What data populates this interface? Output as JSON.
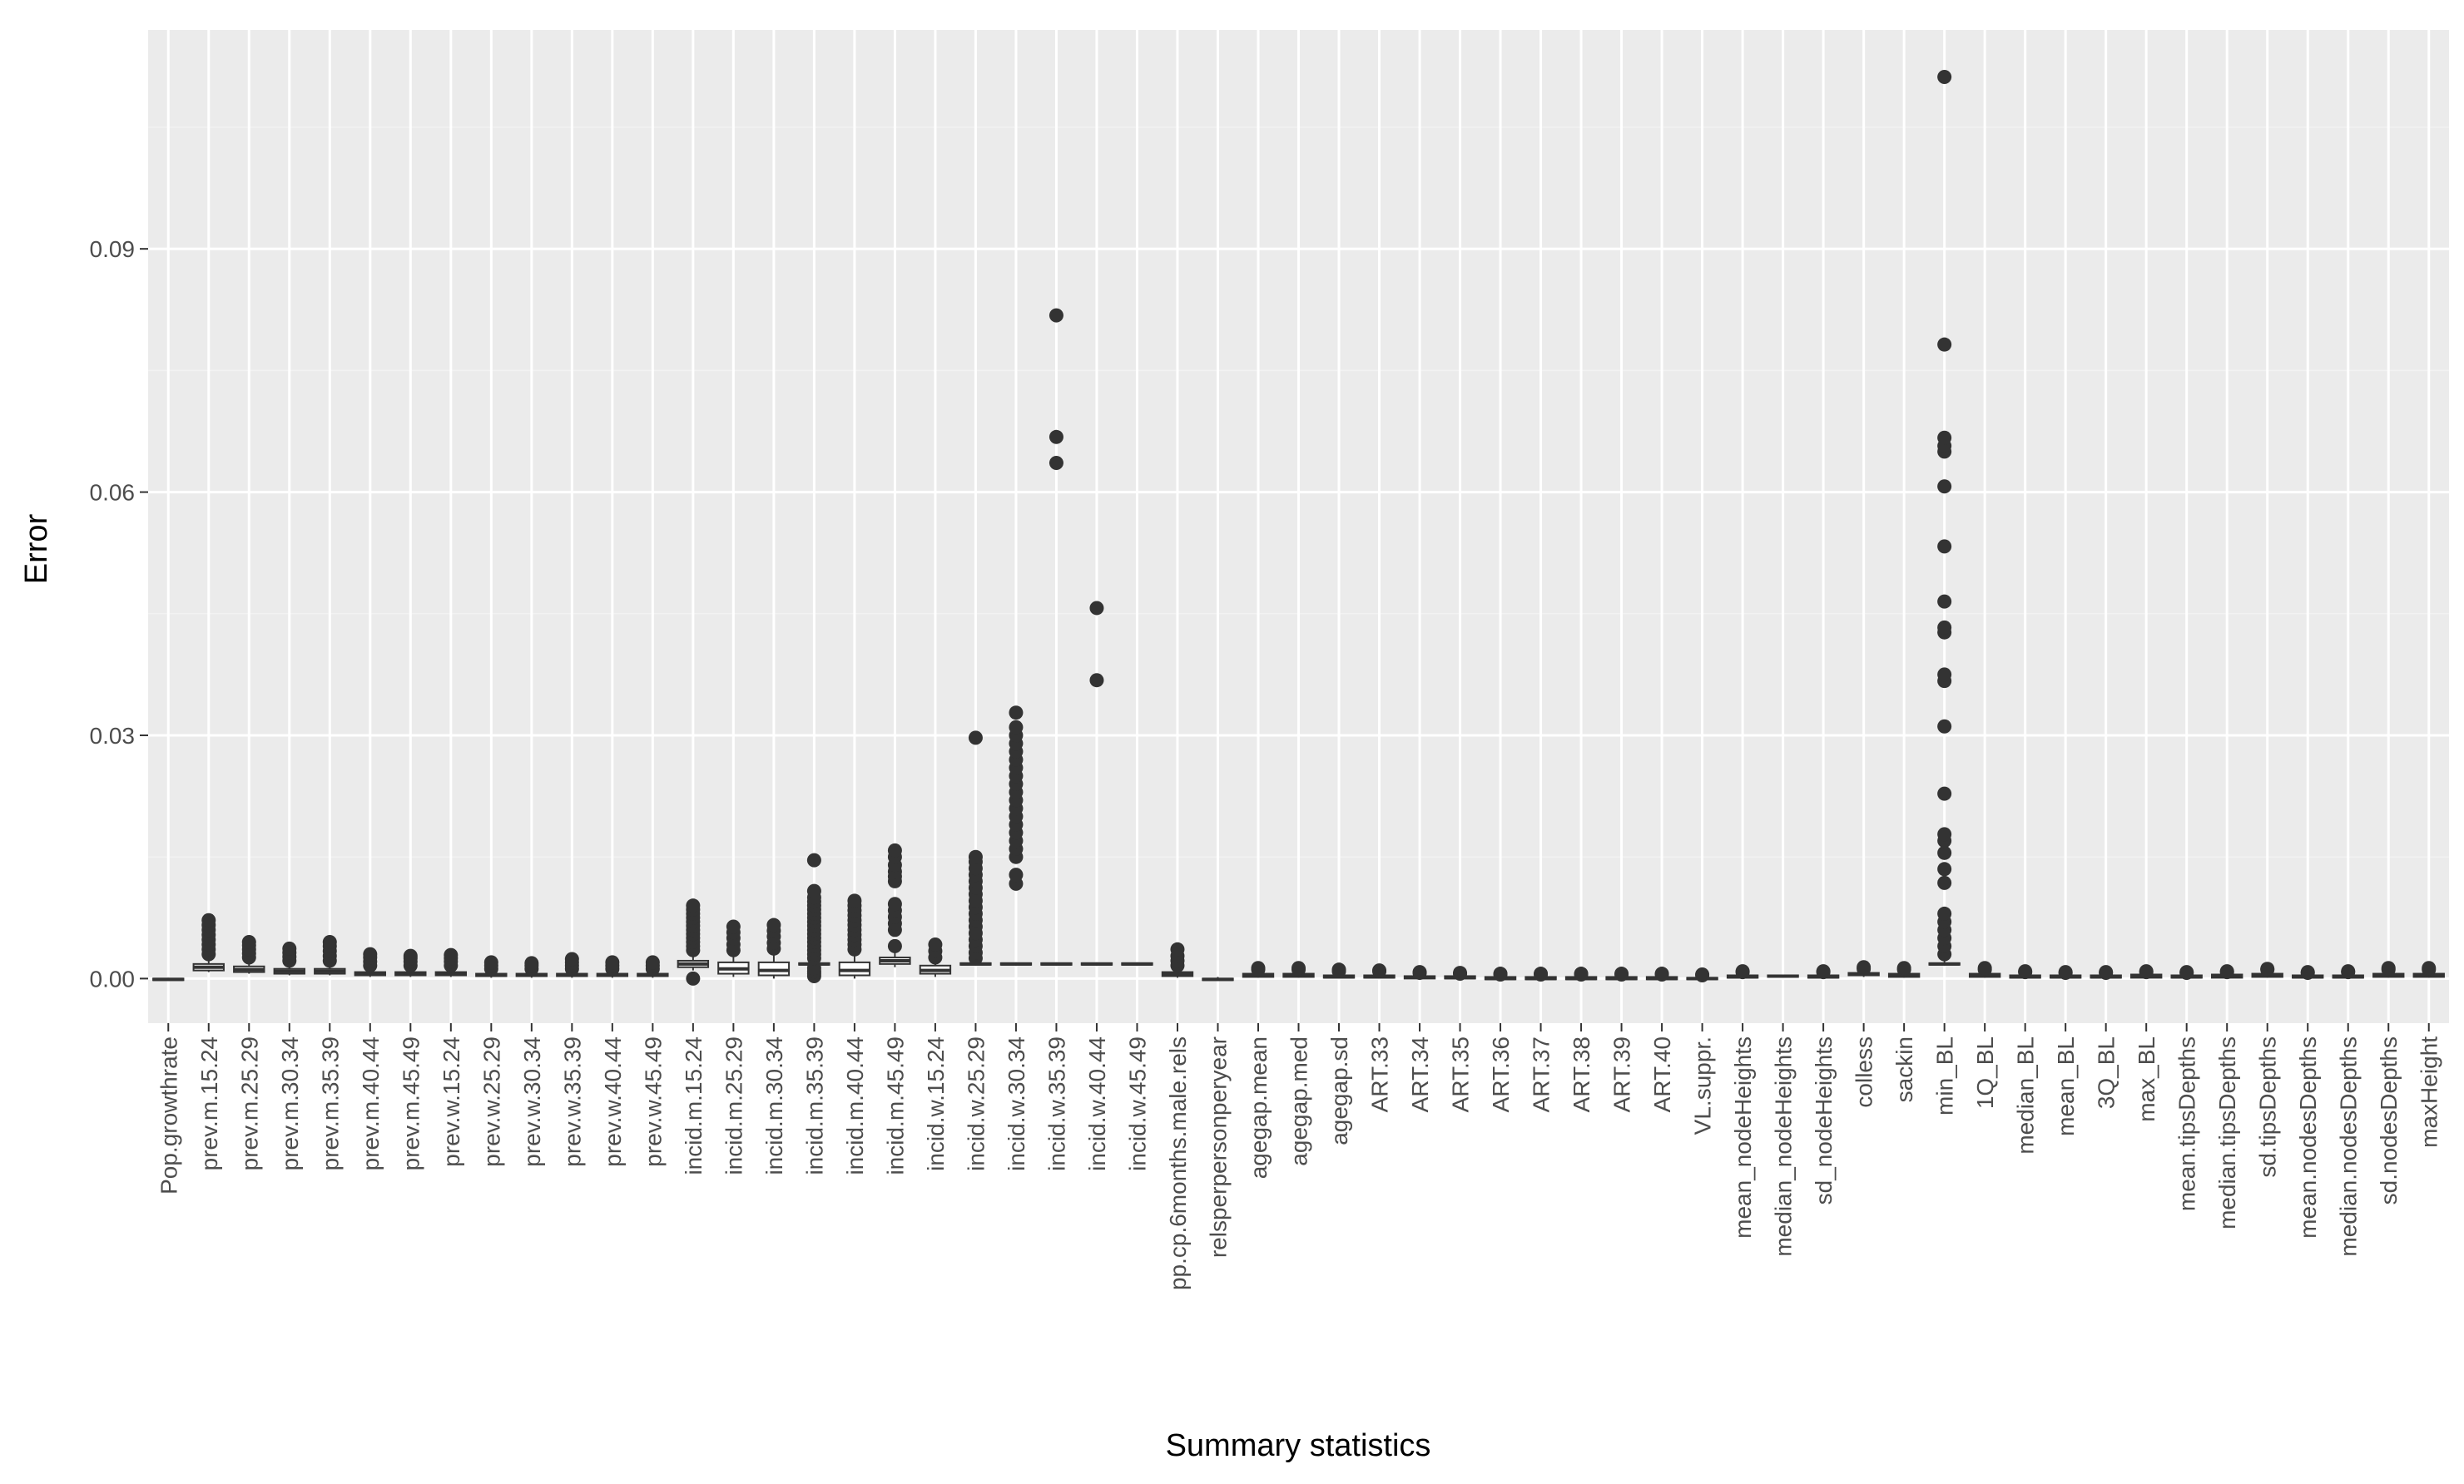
{
  "colors": {
    "panel": "#ebebeb",
    "grid_major": "#ffffff",
    "grid_minor": "#f2f2f2",
    "ink": "#333333",
    "tick_text": "#4d4d4d"
  },
  "chart_data": {
    "type": "boxplot",
    "title": "",
    "xlabel": "Summary statistics",
    "ylabel": "Error",
    "ylim": [
      -0.0055,
      0.117
    ],
    "yticks": [
      0.0,
      0.03,
      0.06,
      0.09
    ],
    "ytick_labels": [
      "0.00",
      "0.03",
      "0.06",
      "0.09"
    ],
    "grid": true,
    "categories": [
      "Pop.growthrate",
      "prev.m.15.24",
      "prev.m.25.29",
      "prev.m.30.34",
      "prev.m.35.39",
      "prev.m.40.44",
      "prev.m.45.49",
      "prev.w.15.24",
      "prev.w.25.29",
      "prev.w.30.34",
      "prev.w.35.39",
      "prev.w.40.44",
      "prev.w.45.49",
      "incid.m.15.24",
      "incid.m.25.29",
      "incid.m.30.34",
      "incid.m.35.39",
      "incid.m.40.44",
      "incid.m.45.49",
      "incid.w.15.24",
      "incid.w.25.29",
      "incid.w.30.34",
      "incid.w.35.39",
      "incid.w.40.44",
      "incid.w.45.49",
      "pp.cp.6months.male.rels",
      "relsperpersonperyear",
      "agegap.mean",
      "agegap.med",
      "agegap.sd",
      "ART.33",
      "ART.34",
      "ART.35",
      "ART.36",
      "ART.37",
      "ART.38",
      "ART.39",
      "ART.40",
      "VL.suppr.",
      "mean_nodeHeights",
      "median_nodeHeights",
      "sd_nodeHeights",
      "colless",
      "sackin",
      "min_BL",
      "1Q_BL",
      "median_BL",
      "mean_BL",
      "3Q_BL",
      "max_BL",
      "mean.tipsDepths",
      "median.tipsDepths",
      "sd.tipsDepths",
      "mean.nodesDepths",
      "median.nodesDepths",
      "sd.nodesDepths",
      "maxHeight"
    ],
    "boxes": [
      [
        -0.0003,
        -0.0002,
        -0.0001,
        0.0,
        0.0001
      ],
      [
        0.0008,
        0.001,
        0.0014,
        0.0018,
        0.0025
      ],
      [
        0.0006,
        0.0008,
        0.0011,
        0.0015,
        0.0022
      ],
      [
        0.0004,
        0.0006,
        0.0009,
        0.0012,
        0.0018
      ],
      [
        0.0004,
        0.0006,
        0.0009,
        0.0012,
        0.0018
      ],
      [
        0.0002,
        0.0004,
        0.0006,
        0.0008,
        0.0012
      ],
      [
        0.0002,
        0.0004,
        0.0006,
        0.0008,
        0.0012
      ],
      [
        0.0002,
        0.0004,
        0.0006,
        0.0008,
        0.0012
      ],
      [
        0.0001,
        0.0003,
        0.0004,
        0.0006,
        0.0009
      ],
      [
        0.0001,
        0.0003,
        0.0004,
        0.0006,
        0.0009
      ],
      [
        0.0001,
        0.0003,
        0.0004,
        0.0006,
        0.0009
      ],
      [
        0.0001,
        0.0003,
        0.0004,
        0.0006,
        0.0009
      ],
      [
        0.0001,
        0.0003,
        0.0004,
        0.0006,
        0.0009
      ],
      [
        0.001,
        0.0014,
        0.0018,
        0.0022,
        0.003
      ],
      [
        0.0002,
        0.0006,
        0.0012,
        0.002,
        0.003
      ],
      [
        0.0,
        0.0004,
        0.001,
        0.002,
        0.0032
      ],
      [
        0.0016,
        0.0017,
        0.0018,
        0.0019,
        0.0022
      ],
      [
        0.0,
        0.0004,
        0.001,
        0.002,
        0.0032
      ],
      [
        0.0014,
        0.0018,
        0.0022,
        0.0026,
        0.0035
      ],
      [
        0.0002,
        0.0006,
        0.001,
        0.0016,
        0.0022
      ],
      [
        0.0016,
        0.0017,
        0.0018,
        0.0019,
        0.002
      ],
      [
        0.0016,
        0.0017,
        0.0018,
        0.0019,
        0.002
      ],
      [
        0.0016,
        0.0017,
        0.0018,
        0.0019,
        0.002
      ],
      [
        0.0016,
        0.0017,
        0.0018,
        0.0019,
        0.002
      ],
      [
        0.0016,
        0.0017,
        0.0018,
        0.0019,
        0.002
      ],
      [
        0.0001,
        0.0003,
        0.0005,
        0.0008,
        0.0012
      ],
      [
        -0.0003,
        -0.0002,
        -0.0001,
        0.0,
        0.0002
      ],
      [
        0.0001,
        0.0002,
        0.0004,
        0.0006,
        0.0008
      ],
      [
        0.0001,
        0.0002,
        0.0004,
        0.0006,
        0.0008
      ],
      [
        0.0,
        0.0001,
        0.0002,
        0.0004,
        0.0006
      ],
      [
        0.0,
        0.0001,
        0.0002,
        0.0004,
        0.0006
      ],
      [
        -0.0001,
        0.0,
        0.0002,
        0.0003,
        0.0005
      ],
      [
        -0.0001,
        0.0,
        0.0001,
        0.0003,
        0.0005
      ],
      [
        -0.0002,
        -0.0001,
        0.0,
        0.0002,
        0.0004
      ],
      [
        -0.0002,
        -0.0001,
        0.0,
        0.0002,
        0.0004
      ],
      [
        -0.0002,
        -0.0001,
        0.0,
        0.0002,
        0.0004
      ],
      [
        -0.0002,
        -0.0001,
        0.0,
        0.0002,
        0.0004
      ],
      [
        -0.0002,
        -0.0001,
        0.0,
        0.0002,
        0.0004
      ],
      [
        -0.0003,
        -0.0001,
        0.0,
        0.0001,
        0.0003
      ],
      [
        0.0,
        0.0001,
        0.0002,
        0.0004,
        0.0006
      ],
      [
        0.0001,
        0.0002,
        0.0003,
        0.0004,
        0.0005
      ],
      [
        0.0,
        0.0001,
        0.0002,
        0.0004,
        0.0006
      ],
      [
        0.0002,
        0.0004,
        0.0005,
        0.0007,
        0.001
      ],
      [
        0.0001,
        0.0002,
        0.0004,
        0.0006,
        0.0009
      ],
      [
        0.0016,
        0.0017,
        0.0018,
        0.0019,
        0.0022
      ],
      [
        0.0001,
        0.0002,
        0.0004,
        0.0006,
        0.0009
      ],
      [
        0.0,
        0.0001,
        0.0002,
        0.0004,
        0.0006
      ],
      [
        0.0,
        0.0001,
        0.0002,
        0.0004,
        0.0006
      ],
      [
        0.0,
        0.0001,
        0.0002,
        0.0004,
        0.0006
      ],
      [
        0.0,
        0.0001,
        0.0003,
        0.0005,
        0.0007
      ],
      [
        0.0,
        0.0001,
        0.0002,
        0.0004,
        0.0006
      ],
      [
        0.0,
        0.0001,
        0.0003,
        0.0005,
        0.0007
      ],
      [
        0.0001,
        0.0002,
        0.0004,
        0.0006,
        0.0009
      ],
      [
        0.0,
        0.0001,
        0.0002,
        0.0004,
        0.0006
      ],
      [
        0.0,
        0.0001,
        0.0002,
        0.0004,
        0.0006
      ],
      [
        0.0001,
        0.0002,
        0.0004,
        0.0006,
        0.0009
      ],
      [
        0.0001,
        0.0002,
        0.0004,
        0.0006,
        0.0009
      ]
    ],
    "outliers": [
      [],
      [
        0.003,
        0.0036,
        0.0042,
        0.0048,
        0.0054,
        0.006,
        0.0066,
        0.0072
      ],
      [
        0.0026,
        0.0031,
        0.0036,
        0.0041,
        0.0045
      ],
      [
        0.0022,
        0.0027,
        0.0032,
        0.0037
      ],
      [
        0.0022,
        0.0028,
        0.0034,
        0.004,
        0.0045
      ],
      [
        0.0016,
        0.0021,
        0.0026,
        0.003
      ],
      [
        0.0016,
        0.0021,
        0.0025,
        0.0028
      ],
      [
        0.0016,
        0.0021,
        0.0025,
        0.0029
      ],
      [
        0.0012,
        0.0016,
        0.002
      ],
      [
        0.0012,
        0.0016,
        0.0019
      ],
      [
        0.0012,
        0.0016,
        0.002,
        0.0024
      ],
      [
        0.0012,
        0.0016,
        0.002
      ],
      [
        0.0012,
        0.0016,
        0.002
      ],
      [
        0.0,
        0.0035,
        0.004,
        0.0045,
        0.005,
        0.0055,
        0.006,
        0.0065,
        0.007,
        0.0075,
        0.008,
        0.0085,
        0.009
      ],
      [
        0.0035,
        0.0042,
        0.005,
        0.0057,
        0.0064
      ],
      [
        0.0037,
        0.0044,
        0.0052,
        0.0059,
        0.0066
      ],
      [
        0.0003,
        0.0006,
        0.0009,
        0.0013,
        0.0025,
        0.003,
        0.0035,
        0.004,
        0.0045,
        0.005,
        0.0055,
        0.006,
        0.0065,
        0.007,
        0.0075,
        0.008,
        0.0085,
        0.009,
        0.0095,
        0.01,
        0.0108,
        0.0146
      ],
      [
        0.0036,
        0.0042,
        0.0048,
        0.0054,
        0.006,
        0.0066,
        0.0072,
        0.0078,
        0.0084,
        0.009,
        0.0096
      ],
      [
        0.004,
        0.006,
        0.0068,
        0.0076,
        0.0084,
        0.0092,
        0.012,
        0.0126,
        0.0132,
        0.014,
        0.015,
        0.0158
      ],
      [
        0.0026,
        0.0034,
        0.0042
      ],
      [
        0.0025,
        0.0032,
        0.004,
        0.0048,
        0.0056,
        0.0064,
        0.0072,
        0.008,
        0.0088,
        0.0096,
        0.0104,
        0.0112,
        0.012,
        0.0128,
        0.0136,
        0.0144,
        0.015,
        0.0297
      ],
      [
        0.0117,
        0.0128,
        0.015,
        0.016,
        0.017,
        0.018,
        0.019,
        0.02,
        0.021,
        0.022,
        0.023,
        0.024,
        0.025,
        0.026,
        0.027,
        0.028,
        0.029,
        0.03,
        0.031,
        0.0328
      ],
      [
        0.0636,
        0.0668,
        0.0818
      ],
      [
        0.0368,
        0.0457
      ],
      [],
      [
        0.0016,
        0.0022,
        0.0028,
        0.0036
      ],
      [],
      [
        0.0011,
        0.0013
      ],
      [
        0.0011,
        0.0013
      ],
      [
        0.0009,
        0.0011
      ],
      [
        0.0009,
        0.001
      ],
      [
        0.0007,
        0.0008
      ],
      [
        0.0006,
        0.0007
      ],
      [
        0.0005,
        0.0006
      ],
      [
        0.0005,
        0.0006
      ],
      [
        0.0005,
        0.0006
      ],
      [
        0.0005,
        0.0006
      ],
      [
        0.0005,
        0.0006
      ],
      [
        0.0004,
        0.0005
      ],
      [
        0.0008,
        0.0009
      ],
      [],
      [
        0.0008,
        0.0009
      ],
      [
        0.0012,
        0.0014
      ],
      [
        0.0011,
        0.0013
      ],
      [
        0.003,
        0.004,
        0.005,
        0.006,
        0.007,
        0.008,
        0.0118,
        0.0135,
        0.0155,
        0.017,
        0.0178,
        0.0228,
        0.0311,
        0.0367,
        0.0375,
        0.0427,
        0.0433,
        0.0465,
        0.0533,
        0.0607,
        0.065,
        0.0657,
        0.0667,
        0.0782,
        0.1112
      ],
      [
        0.0011,
        0.0013
      ],
      [
        0.0008,
        0.0009
      ],
      [
        0.0007,
        0.0008
      ],
      [
        0.0007,
        0.0008
      ],
      [
        0.0008,
        0.0009
      ],
      [
        0.0007,
        0.0008
      ],
      [
        0.0008,
        0.0009
      ],
      [
        0.0011,
        0.0012
      ],
      [
        0.0007,
        0.0008
      ],
      [
        0.0008,
        0.0009
      ],
      [
        0.0011,
        0.0013
      ],
      [
        0.0011,
        0.0013
      ]
    ]
  }
}
